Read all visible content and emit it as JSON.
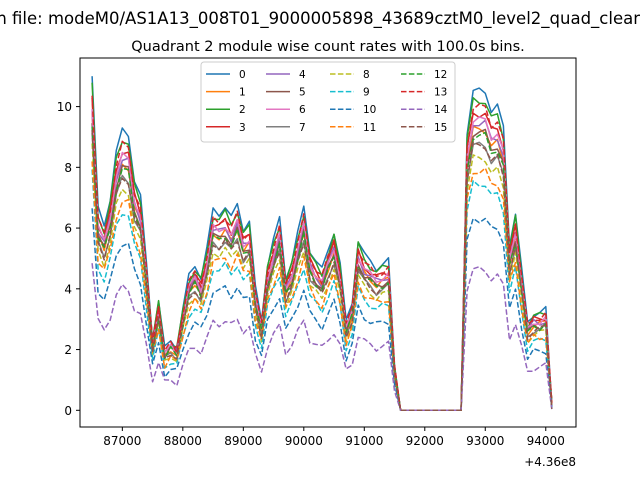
{
  "figure": {
    "suptitle": "n file: modeM0/AS1A13_008T01_9000005898_43689cztM0_level2_quad_clean",
    "axes_title": "Quadrant 2 module wise count rates with 100.0s bins."
  },
  "chart_data": {
    "type": "line",
    "title": "Quadrant 2 module wise count rates with 100.0s bins.",
    "xlabel": "",
    "ylabel": "",
    "x_offset_label": "+4.36e8",
    "xlim": [
      86300,
      94500
    ],
    "ylim": [
      -0.55,
      11.6
    ],
    "xticks": [
      87000,
      88000,
      89000,
      90000,
      91000,
      92000,
      93000,
      94000
    ],
    "xtick_labels": [
      "87000",
      "88000",
      "89000",
      "90000",
      "91000",
      "92000",
      "93000",
      "94000"
    ],
    "yticks": [
      0,
      2,
      4,
      6,
      8,
      10
    ],
    "ytick_labels": [
      "0",
      "2",
      "4",
      "6",
      "8",
      "10"
    ],
    "grid": false,
    "legend_position": "top-center",
    "legend_columns": 4,
    "x": [
      86500,
      86600,
      86700,
      86800,
      86900,
      87000,
      87100,
      87200,
      87300,
      87400,
      87500,
      87600,
      87700,
      87800,
      87900,
      88000,
      88100,
      88200,
      88300,
      88400,
      88500,
      88600,
      88700,
      88800,
      88900,
      89000,
      89100,
      89200,
      89300,
      89400,
      89500,
      89600,
      89700,
      89800,
      89900,
      90000,
      90100,
      90200,
      90300,
      90400,
      90500,
      90600,
      90700,
      90800,
      90900,
      91000,
      91100,
      91200,
      91300,
      91400,
      91500,
      91600,
      91700,
      91800,
      91900,
      92000,
      92100,
      92200,
      92300,
      92400,
      92500,
      92600,
      92700,
      92800,
      92900,
      93000,
      93100,
      93200,
      93300,
      93400,
      93500,
      93600,
      93700,
      93800,
      93900,
      94000,
      94100
    ],
    "base_shape": [
      11.0,
      6.6,
      6.1,
      7.0,
      8.5,
      9.2,
      9.1,
      7.6,
      7.0,
      4.8,
      2.4,
      3.6,
      2.0,
      2.3,
      2.1,
      3.3,
      4.4,
      4.8,
      4.4,
      5.3,
      6.6,
      6.5,
      6.7,
      6.3,
      6.8,
      6.0,
      6.2,
      4.0,
      3.0,
      4.8,
      5.6,
      6.3,
      4.4,
      4.9,
      5.8,
      6.7,
      5.3,
      4.9,
      4.6,
      5.3,
      5.9,
      4.8,
      2.9,
      3.6,
      5.6,
      5.1,
      4.9,
      4.7,
      4.8,
      4.9,
      1.5,
      0.0,
      0.0,
      0.0,
      0.0,
      0.0,
      0.0,
      0.0,
      0.0,
      0.0,
      0.0,
      0.0,
      9.2,
      10.5,
      10.5,
      10.5,
      9.9,
      10.0,
      9.3,
      5.5,
      6.5,
      4.6,
      2.9,
      3.2,
      3.2,
      3.3,
      0.2
    ],
    "series": [
      {
        "name": "0",
        "color": "#1f77b4",
        "dash": "solid",
        "scale": 1.0
      },
      {
        "name": "1",
        "color": "#ff7f0e",
        "dash": "solid",
        "scale": 0.88
      },
      {
        "name": "2",
        "color": "#2ca02c",
        "dash": "solid",
        "scale": 0.97
      },
      {
        "name": "3",
        "color": "#d62728",
        "dash": "solid",
        "scale": 0.93
      },
      {
        "name": "4",
        "color": "#9467bd",
        "dash": "solid",
        "scale": 0.9
      },
      {
        "name": "5",
        "color": "#8c564b",
        "dash": "solid",
        "scale": 0.87
      },
      {
        "name": "6",
        "color": "#e377c2",
        "dash": "solid",
        "scale": 0.91
      },
      {
        "name": "7",
        "color": "#7f7f7f",
        "dash": "solid",
        "scale": 0.83
      },
      {
        "name": "8",
        "color": "#bcbd22",
        "dash": "dashed",
        "scale": 0.79
      },
      {
        "name": "9",
        "color": "#17becf",
        "dash": "dashed",
        "scale": 0.71
      },
      {
        "name": "10",
        "color": "#1f77b4",
        "dash": "dashed",
        "scale": 0.6
      },
      {
        "name": "11",
        "color": "#ff7f0e",
        "dash": "dashed",
        "scale": 0.75
      },
      {
        "name": "12",
        "color": "#2ca02c",
        "dash": "dashed",
        "scale": 0.86
      },
      {
        "name": "13",
        "color": "#d62728",
        "dash": "dashed",
        "scale": 0.95
      },
      {
        "name": "14",
        "color": "#9467bd",
        "dash": "dashed",
        "scale": 0.44
      },
      {
        "name": "15",
        "color": "#8c564b",
        "dash": "dashed",
        "scale": 0.83
      }
    ]
  }
}
